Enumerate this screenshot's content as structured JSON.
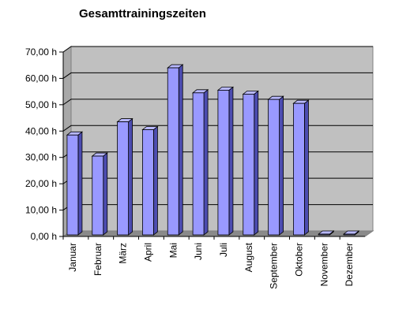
{
  "chart_data": {
    "type": "bar",
    "title": "Gesamttrainingszeiten",
    "xlabel": "",
    "ylabel": "",
    "ylim": [
      0,
      70
    ],
    "y_ticks": [
      "0,00 h",
      "10,00 h",
      "20,00 h",
      "30,00 h",
      "40,00 h",
      "50,00 h",
      "60,00 h",
      "70,00 h"
    ],
    "categories": [
      "Januar",
      "Februar",
      "März",
      "April",
      "Mai",
      "Juni",
      "Juli",
      "August",
      "September",
      "Oktober",
      "November",
      "Dezember"
    ],
    "values": [
      38.5,
      30.5,
      43.5,
      40.5,
      64.0,
      54.5,
      55.5,
      54.0,
      52.0,
      50.5,
      0,
      0
    ],
    "grid": true,
    "legend": "none",
    "colors": {
      "bar_front": "#9999ff",
      "bar_side": "#4c4cb0",
      "bar_top": "#b8b8ff",
      "wall": "#c0c0c0",
      "floor": "#8a8a8a",
      "gridline": "#000000",
      "background": "#ffffff"
    }
  }
}
